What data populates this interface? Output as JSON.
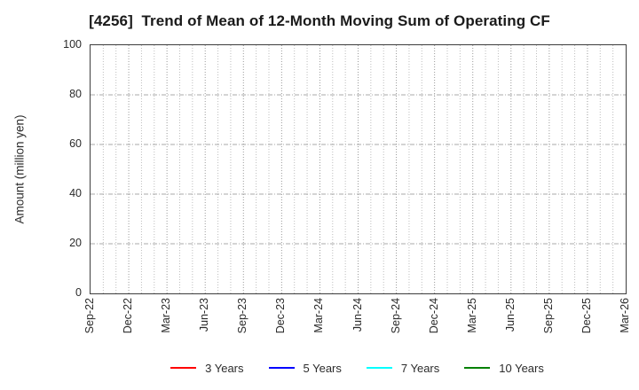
{
  "chart_data": {
    "type": "line",
    "title": "[4256]  Trend of Mean of 12-Month Moving Sum of Operating CF",
    "xlabel": "",
    "ylabel": "Amount (million yen)",
    "ylim": [
      0,
      100
    ],
    "yticks": [
      0,
      20,
      40,
      60,
      80,
      100
    ],
    "xtick_labels": [
      "Sep-22",
      "Dec-22",
      "Mar-23",
      "Jun-23",
      "Sep-23",
      "Dec-23",
      "Mar-24",
      "Jun-24",
      "Sep-24",
      "Dec-24",
      "Mar-25",
      "Jun-25",
      "Sep-25",
      "Dec-25",
      "Mar-26"
    ],
    "x_total_months": 42,
    "months_per_xtick": 3,
    "grid": "on",
    "grid_minor_vertical": "monthly-dotted",
    "grid_horizontal": "dash-dot",
    "legend_position": "bottom-center",
    "series": [
      {
        "name": "3 Years",
        "color": "#ff0000",
        "values": []
      },
      {
        "name": "5 Years",
        "color": "#0000ff",
        "values": []
      },
      {
        "name": "7 Years",
        "color": "#00ffff",
        "values": []
      },
      {
        "name": "10 Years",
        "color": "#008000",
        "values": []
      }
    ]
  }
}
